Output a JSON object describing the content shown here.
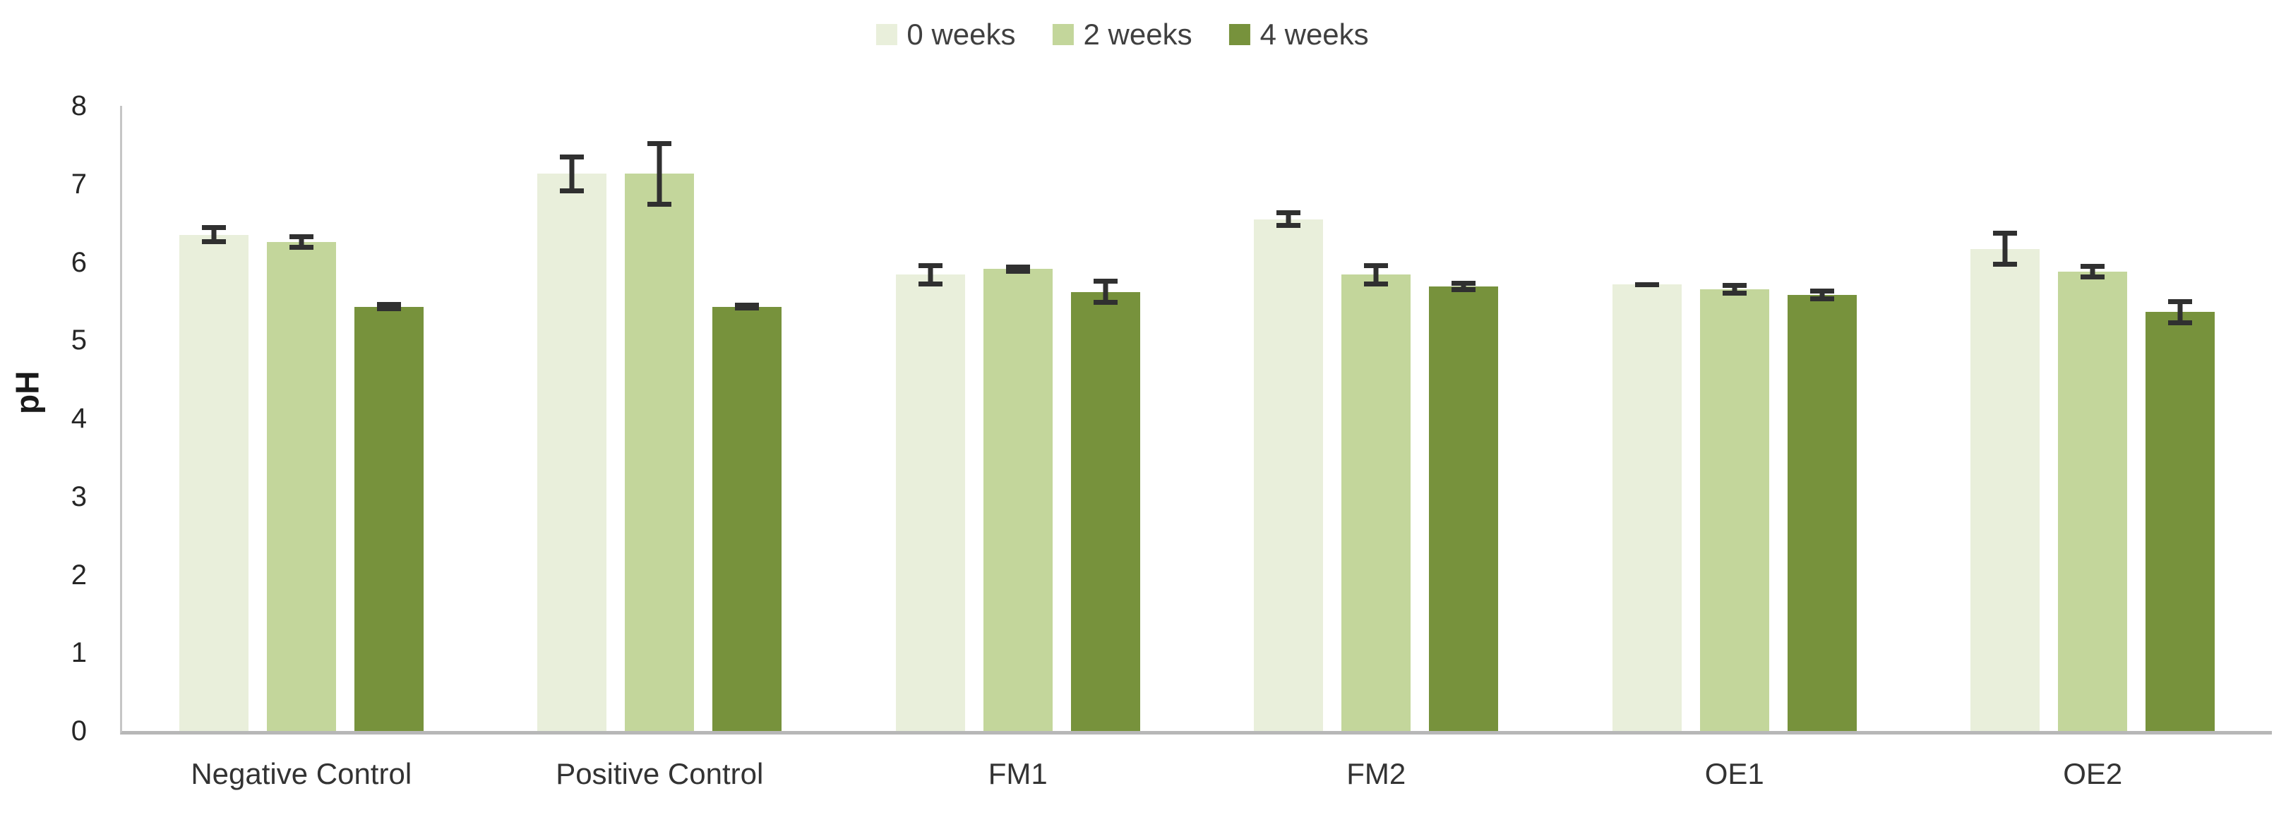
{
  "chart_data": {
    "type": "bar",
    "title": "",
    "xlabel": "",
    "ylabel": "pH",
    "ylim": [
      0,
      8
    ],
    "yticks": [
      0,
      1,
      2,
      3,
      4,
      5,
      6,
      7,
      8
    ],
    "grid": false,
    "legend_position": "top-center",
    "error_bars": true,
    "categories": [
      "Negative Control",
      "Positive Control",
      "FM1",
      "FM2",
      "OE1",
      "OE2"
    ],
    "series": [
      {
        "name": "0 weeks",
        "color": "#e9efdb",
        "values": [
          6.35,
          7.13,
          5.84,
          6.55,
          5.72,
          6.17
        ],
        "errors": [
          0.12,
          0.25,
          0.15,
          0.11,
          0.02,
          0.23
        ]
      },
      {
        "name": "2 weeks",
        "color": "#c3d69b",
        "values": [
          6.26,
          7.13,
          5.91,
          5.84,
          5.65,
          5.88
        ],
        "errors": [
          0.1,
          0.42,
          0.06,
          0.15,
          0.08,
          0.1
        ]
      },
      {
        "name": "4 weeks",
        "color": "#77923c",
        "values": [
          5.43,
          5.43,
          5.62,
          5.69,
          5.58,
          5.36
        ],
        "errors": [
          0.06,
          0.05,
          0.17,
          0.07,
          0.08,
          0.17
        ]
      }
    ],
    "colors": {
      "axis_line": "#c6c6c6",
      "baseline": "#b7b7b7",
      "error_bar": "#303030",
      "tick_text": "#262626",
      "category_text": "#333333",
      "legend_text": "#404040"
    }
  }
}
